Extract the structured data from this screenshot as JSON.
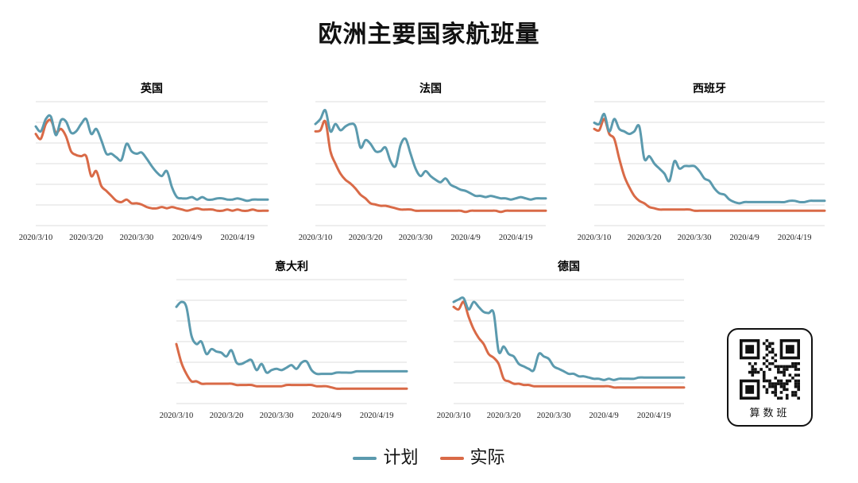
{
  "title": "欧洲主要国家航班量",
  "legend": [
    {
      "label": "计划",
      "color": "#5b9aae"
    },
    {
      "label": "实际",
      "color": "#d96a47"
    }
  ],
  "qr_card": {
    "label": "算数班",
    "icon": "qr-code-icon"
  },
  "chart_data": [
    {
      "type": "line",
      "title": "英国",
      "x_ticks": [
        "2020/3/10",
        "2020/3/20",
        "2020/3/30",
        "2020/4/9",
        "2020/4/19"
      ],
      "x_range": [
        0,
        46
      ],
      "ylim": [
        0,
        100
      ],
      "grid": true,
      "series": [
        {
          "name": "计划",
          "values": [
            80,
            76,
            86,
            88,
            73,
            85,
            84,
            75,
            76,
            82,
            86,
            74,
            78,
            69,
            58,
            58,
            55,
            53,
            66,
            60,
            58,
            59,
            54,
            48,
            43,
            40,
            44,
            31,
            23,
            22,
            22,
            23,
            21,
            23,
            21,
            21,
            22,
            22,
            21,
            21,
            22,
            21,
            20,
            21,
            21,
            21,
            21
          ]
        },
        {
          "name": "实际",
          "values": [
            74,
            70,
            82,
            85,
            75,
            78,
            72,
            60,
            57,
            56,
            56,
            40,
            44,
            32,
            28,
            24,
            20,
            19,
            21,
            18,
            18,
            17,
            15,
            14,
            14,
            15,
            14,
            15,
            14,
            13,
            12,
            13,
            14,
            13,
            13,
            13,
            12,
            12,
            13,
            12,
            13,
            12,
            12,
            13,
            12,
            12,
            12
          ]
        }
      ]
    },
    {
      "type": "line",
      "title": "法国",
      "x_ticks": [
        "2020/3/10",
        "2020/3/20",
        "2020/3/30",
        "2020/4/9",
        "2020/4/19"
      ],
      "x_range": [
        0,
        46
      ],
      "ylim": [
        0,
        100
      ],
      "grid": true,
      "series": [
        {
          "name": "计划",
          "values": [
            82,
            86,
            93,
            76,
            82,
            77,
            80,
            82,
            80,
            63,
            69,
            66,
            60,
            60,
            63,
            52,
            48,
            65,
            70,
            58,
            46,
            40,
            44,
            40,
            37,
            35,
            38,
            33,
            31,
            29,
            28,
            26,
            24,
            24,
            23,
            24,
            23,
            22,
            22,
            21,
            22,
            23,
            22,
            21,
            22,
            22,
            22
          ]
        },
        {
          "name": "实际",
          "values": [
            76,
            77,
            84,
            60,
            50,
            42,
            37,
            34,
            30,
            25,
            22,
            18,
            17,
            16,
            16,
            15,
            14,
            13,
            13,
            13,
            12,
            12,
            12,
            12,
            12,
            12,
            12,
            12,
            12,
            12,
            11,
            12,
            12,
            12,
            12,
            12,
            12,
            11,
            12,
            12,
            12,
            12,
            12,
            12,
            12,
            12,
            12
          ]
        }
      ]
    },
    {
      "type": "line",
      "title": "西班牙",
      "x_ticks": [
        "2020/3/10",
        "2020/3/20",
        "2020/3/30",
        "2020/4/9",
        "2020/4/19"
      ],
      "x_range": [
        0,
        46
      ],
      "ylim": [
        0,
        100
      ],
      "grid": true,
      "series": [
        {
          "name": "计划",
          "values": [
            83,
            82,
            90,
            76,
            86,
            78,
            76,
            74,
            76,
            80,
            54,
            56,
            50,
            46,
            42,
            36,
            52,
            46,
            48,
            48,
            48,
            44,
            38,
            36,
            30,
            26,
            25,
            21,
            19,
            18,
            19,
            19,
            19,
            19,
            19,
            19,
            19,
            19,
            19,
            20,
            20,
            19,
            19,
            20,
            20,
            20,
            20
          ]
        },
        {
          "name": "实际",
          "values": [
            78,
            77,
            86,
            74,
            70,
            54,
            40,
            31,
            24,
            20,
            18,
            15,
            14,
            13,
            13,
            13,
            13,
            13,
            13,
            13,
            12,
            12,
            12,
            12,
            12,
            12,
            12,
            12,
            12,
            12,
            12,
            12,
            12,
            12,
            12,
            12,
            12,
            12,
            12,
            12,
            12,
            12,
            12,
            12,
            12,
            12,
            12
          ]
        }
      ]
    },
    {
      "type": "line",
      "title": "意大利",
      "x_ticks": [
        "2020/3/10",
        "2020/3/20",
        "2020/3/30",
        "2020/4/9",
        "2020/4/19"
      ],
      "x_range": [
        0,
        46
      ],
      "ylim": [
        0,
        100
      ],
      "grid": true,
      "series": [
        {
          "name": "计划",
          "values": [
            78,
            82,
            78,
            55,
            48,
            50,
            40,
            44,
            42,
            41,
            38,
            43,
            33,
            32,
            34,
            35,
            27,
            32,
            25,
            27,
            28,
            27,
            29,
            31,
            28,
            33,
            34,
            27,
            24,
            24,
            24,
            24,
            25,
            25,
            25,
            25,
            26,
            26,
            26,
            26,
            26,
            26,
            26,
            26,
            26,
            26,
            26
          ]
        },
        {
          "name": "实际",
          "values": [
            48,
            33,
            24,
            18,
            18,
            16,
            16,
            16,
            16,
            16,
            16,
            16,
            15,
            15,
            15,
            15,
            14,
            14,
            14,
            14,
            14,
            14,
            15,
            15,
            15,
            15,
            15,
            15,
            14,
            14,
            14,
            13,
            12,
            12,
            12,
            12,
            12,
            12,
            12,
            12,
            12,
            12,
            12,
            12,
            12,
            12,
            12
          ]
        }
      ]
    },
    {
      "type": "line",
      "title": "德国",
      "x_ticks": [
        "2020/3/10",
        "2020/3/20",
        "2020/3/30",
        "2020/4/9",
        "2020/4/19"
      ],
      "x_range": [
        0,
        46
      ],
      "ylim": [
        0,
        100
      ],
      "grid": true,
      "series": [
        {
          "name": "计划",
          "values": [
            82,
            84,
            85,
            76,
            82,
            78,
            74,
            73,
            73,
            42,
            46,
            40,
            38,
            32,
            30,
            28,
            27,
            40,
            38,
            36,
            30,
            28,
            26,
            24,
            24,
            22,
            22,
            21,
            20,
            20,
            19,
            20,
            19,
            20,
            20,
            20,
            20,
            21,
            21,
            21,
            21,
            21,
            21,
            21,
            21,
            21,
            21
          ]
        },
        {
          "name": "实际",
          "values": [
            78,
            76,
            82,
            70,
            60,
            53,
            48,
            40,
            37,
            32,
            20,
            18,
            16,
            16,
            15,
            15,
            14,
            14,
            14,
            14,
            14,
            14,
            14,
            14,
            14,
            14,
            14,
            14,
            14,
            14,
            14,
            14,
            13,
            13,
            13,
            13,
            13,
            13,
            13,
            13,
            13,
            13,
            13,
            13,
            13,
            13,
            13
          ]
        }
      ]
    }
  ]
}
